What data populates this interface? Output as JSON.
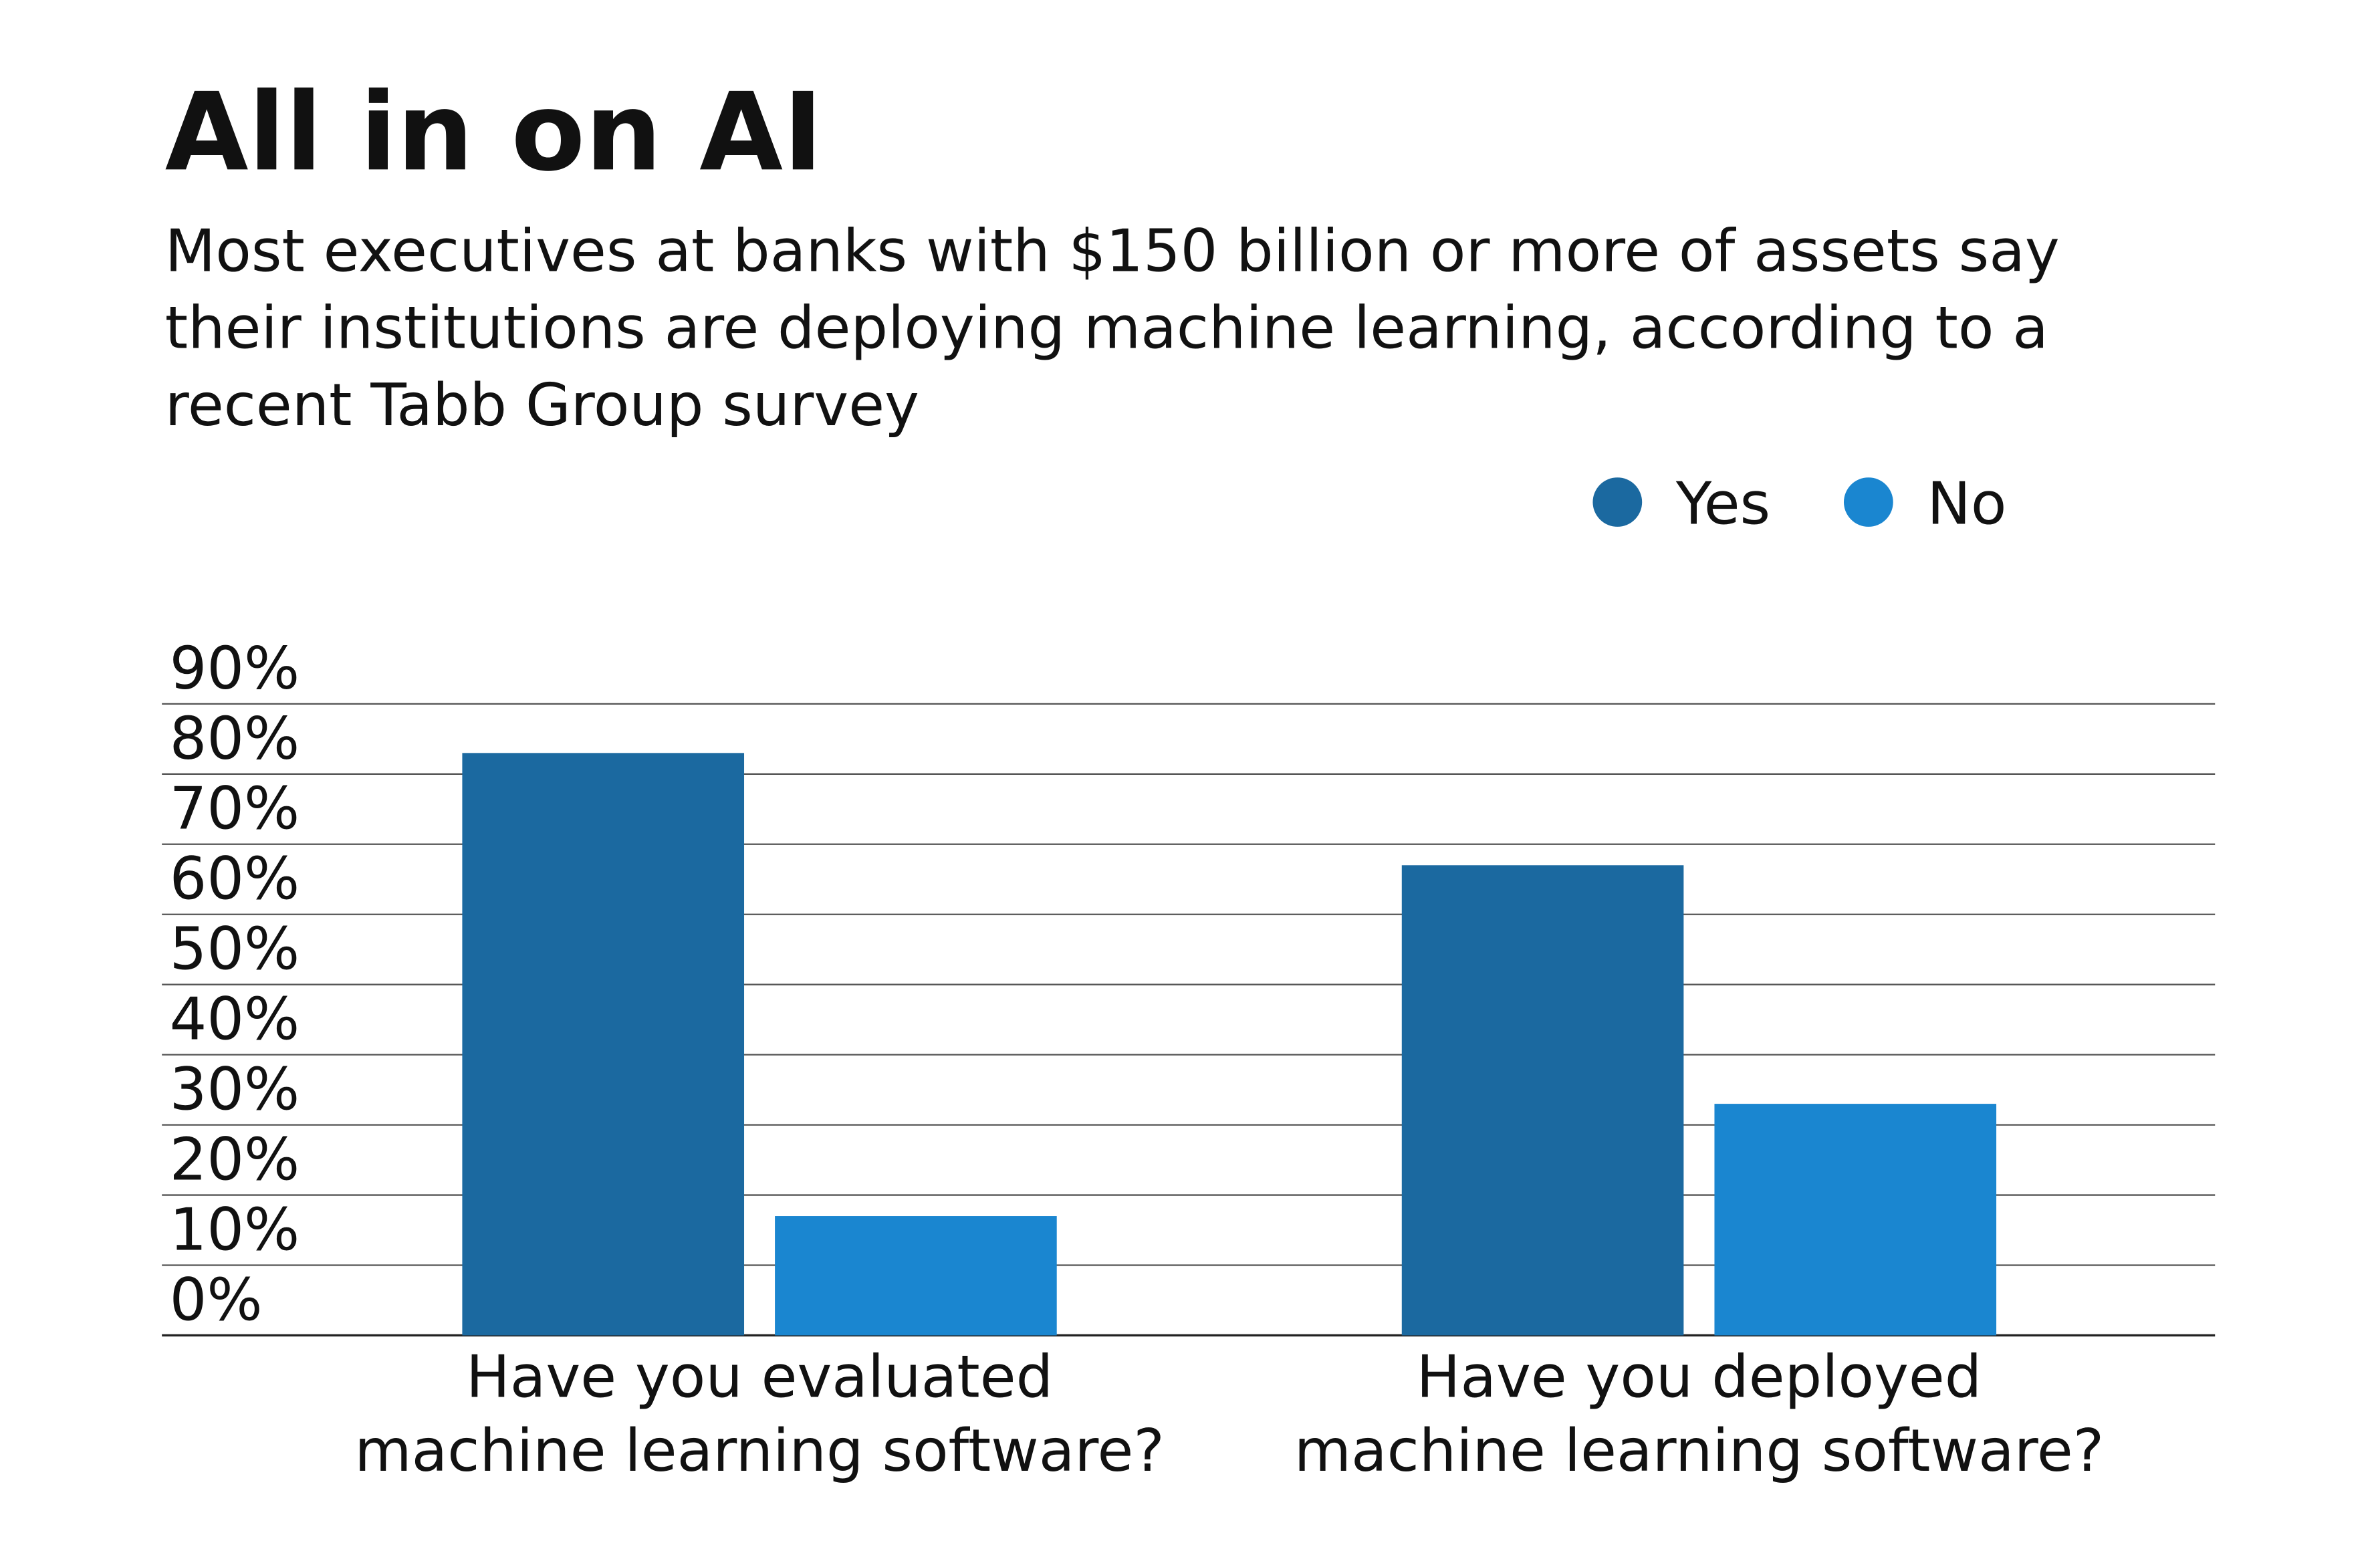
{
  "chart_data": {
    "type": "bar",
    "title": "All in on AI",
    "subtitle": "Most executives at banks with $150 billion or more of assets say their institutions are deploying machine learning, according to a recent Tabb Group survey",
    "categories": [
      "Have you evaluated machine learning software?",
      "Have you deployed machine learning software?"
    ],
    "series": [
      {
        "name": "Yes",
        "color": "#1b69a0",
        "values": [
          83,
          67
        ]
      },
      {
        "name": "No",
        "color": "#1a86d0",
        "values": [
          17,
          33
        ]
      }
    ],
    "ylim": [
      0,
      90
    ],
    "yticks": [
      {
        "value": 0,
        "label": "0%"
      },
      {
        "value": 10,
        "label": "10%"
      },
      {
        "value": 20,
        "label": "20%"
      },
      {
        "value": 30,
        "label": "30%"
      },
      {
        "value": 40,
        "label": "40%"
      },
      {
        "value": 50,
        "label": "50%"
      },
      {
        "value": 60,
        "label": "60%"
      },
      {
        "value": 70,
        "label": "70%"
      },
      {
        "value": 80,
        "label": "80%"
      },
      {
        "value": 90,
        "label": "90%"
      }
    ],
    "grid": true,
    "legend": "top-right"
  }
}
